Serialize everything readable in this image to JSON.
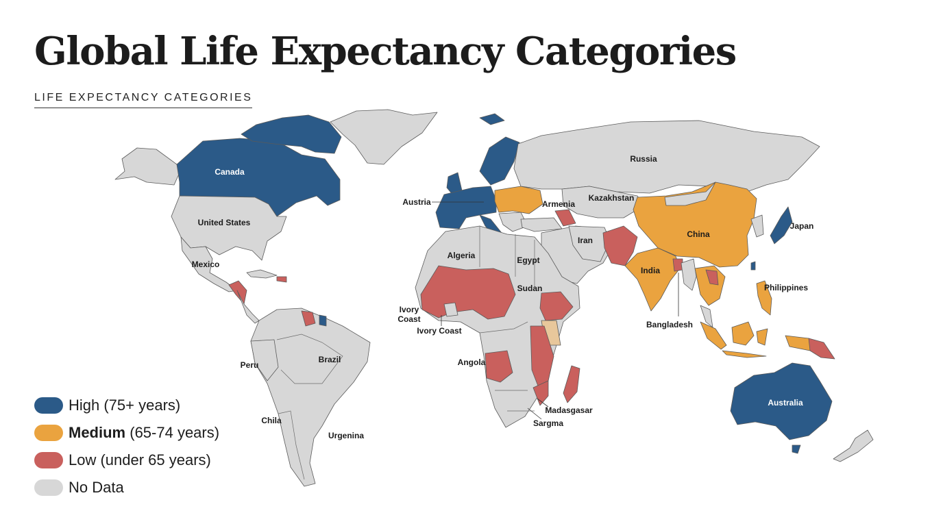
{
  "title": "Global Life Expectancy Categories",
  "subtitle": "LIFE EXPECTANCY CATEGORIES",
  "colors": {
    "high": "#2b5a88",
    "medium": "#eaa33f",
    "low": "#c9605d",
    "nodata": "#d7d7d7",
    "pale": "#e8c79b",
    "ocean": "#ffffff"
  },
  "legend": [
    {
      "key": "high",
      "bold": "",
      "label": "High (75+ years)"
    },
    {
      "key": "medium",
      "bold": "Medium",
      "label": " (65-74 years)"
    },
    {
      "key": "low",
      "bold": "",
      "label": "Low (under 65 years)"
    },
    {
      "key": "nodata",
      "bold": "",
      "label": "No Data"
    }
  ],
  "labels": {
    "canada": "Canada",
    "united_states": "United States",
    "mexico": "Mexico",
    "peru": "Peru",
    "brazil": "Brazil",
    "chila": "Chila",
    "urgenina": "Urgenina",
    "austria": "Austria",
    "armenia": "Armenia",
    "russia": "Russia",
    "kazakhstan": "Kazakhstan",
    "china": "China",
    "japan": "Japan",
    "iran": "Iran",
    "india": "India",
    "bangladesh": "Bangladesh",
    "philippines": "Philippines",
    "algeria": "Algeria",
    "egypt": "Egypt",
    "sudan": "Sudan",
    "ivory_coast_1": "Ivory",
    "ivory_coast_2": "Coast",
    "ivory_coast_b": "Ivory Coast",
    "angola": "Angola",
    "madasgasar": "Madasgasar",
    "sargma": "Sargma",
    "australia": "Australia"
  }
}
